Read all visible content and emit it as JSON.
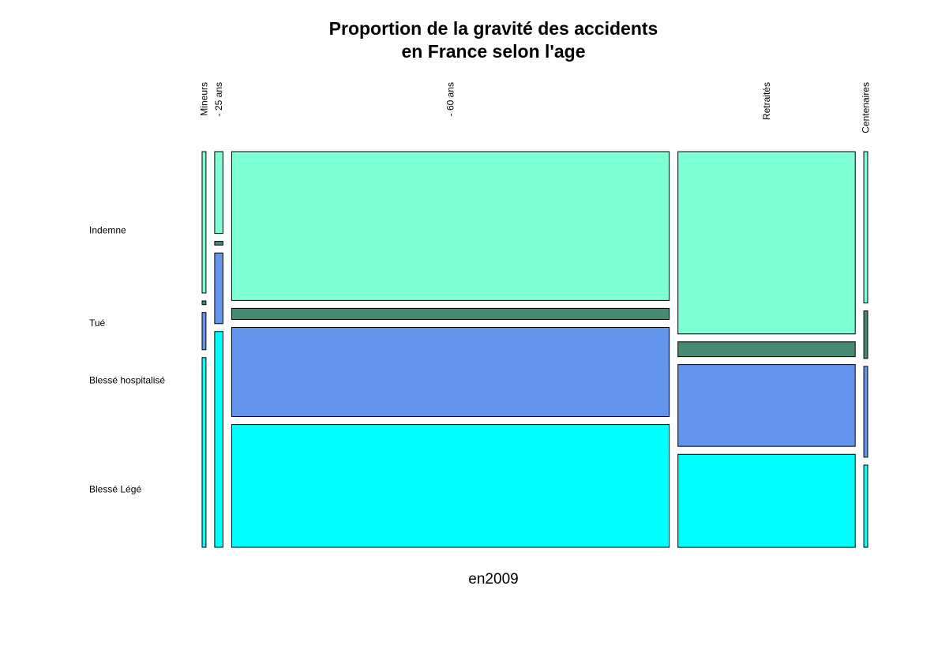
{
  "chart_data": {
    "type": "mosaic",
    "title_lines": [
      "Proportion de la gravité des accidents",
      "en France selon l'age"
    ],
    "xlabel": "en2009",
    "ylabel": "",
    "categories": [
      "Mineurs",
      "- 25 ans",
      "- 60 ans",
      "Retraités",
      "Centenaires"
    ],
    "column_widths": [
      0.006,
      0.013,
      0.684,
      0.277,
      0.006
    ],
    "series": [
      {
        "name": "Indemne",
        "color": "#7fffd4",
        "values": [
          0.38,
          0.22,
          0.4,
          0.49,
          0.35
        ]
      },
      {
        "name": "Tué",
        "color": "#458b74",
        "values": [
          0.01,
          0.01,
          0.03,
          0.04,
          0.11
        ]
      },
      {
        "name": "Blessé hospitalisé",
        "color": "#6495ed",
        "values": [
          0.1,
          0.19,
          0.24,
          0.22,
          0.21
        ]
      },
      {
        "name": "Blessé Légé",
        "color": "#00ffff",
        "values": [
          0.51,
          0.58,
          0.33,
          0.25,
          0.19
        ]
      }
    ]
  }
}
